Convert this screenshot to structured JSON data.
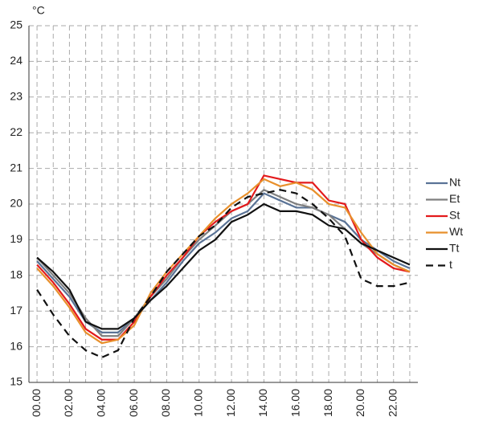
{
  "chart_data": {
    "type": "line",
    "y_label": "°C",
    "categories": [
      "00.00",
      null,
      "02.00",
      null,
      "04.00",
      null,
      "06.00",
      null,
      "08.00",
      null,
      "10.00",
      null,
      "12.00",
      null,
      "14.00",
      null,
      "16.00",
      null,
      "18.00",
      null,
      "20.00",
      null,
      "22.00",
      null
    ],
    "series": [
      {
        "name": "Nt",
        "color": "#5a7396",
        "style": "solid",
        "values": [
          18.4,
          17.9,
          17.4,
          16.7,
          16.4,
          16.4,
          16.8,
          17.3,
          17.8,
          18.4,
          18.9,
          19.2,
          19.6,
          19.8,
          20.3,
          20.1,
          19.9,
          19.9,
          19.7,
          19.5,
          19.0,
          18.7,
          18.4,
          18.2
        ]
      },
      {
        "name": "Et",
        "color": "#7f7f7f",
        "style": "solid",
        "values": [
          18.5,
          18.0,
          17.5,
          16.8,
          16.3,
          16.3,
          16.8,
          17.4,
          17.9,
          18.5,
          19.0,
          19.4,
          19.8,
          20.0,
          20.4,
          20.2,
          20.0,
          19.9,
          19.7,
          19.3,
          18.9,
          18.6,
          18.3,
          18.1
        ]
      },
      {
        "name": "St",
        "color": "#e31a1c",
        "style": "solid",
        "values": [
          18.3,
          17.8,
          17.2,
          16.5,
          16.2,
          16.2,
          16.7,
          17.4,
          18.0,
          18.5,
          19.1,
          19.5,
          19.8,
          20.0,
          20.8,
          20.7,
          20.6,
          20.6,
          20.1,
          20.0,
          19.0,
          18.5,
          18.2,
          18.1
        ]
      },
      {
        "name": "Wt",
        "color": "#e8902c",
        "style": "solid",
        "values": [
          18.2,
          17.7,
          17.1,
          16.4,
          16.1,
          16.2,
          16.6,
          17.5,
          18.1,
          18.6,
          19.1,
          19.6,
          20.0,
          20.3,
          20.7,
          20.5,
          20.6,
          20.4,
          20.0,
          19.9,
          19.2,
          18.6,
          18.3,
          18.1
        ]
      },
      {
        "name": "Tt",
        "color": "#111111",
        "style": "solid",
        "values": [
          18.5,
          18.1,
          17.6,
          16.7,
          16.5,
          16.5,
          16.8,
          17.3,
          17.7,
          18.2,
          18.7,
          19.0,
          19.5,
          19.7,
          20.0,
          19.8,
          19.8,
          19.7,
          19.4,
          19.3,
          18.9,
          18.7,
          18.5,
          18.3
        ]
      },
      {
        "name": "t",
        "color": "#111111",
        "style": "dashed",
        "values": [
          17.6,
          16.9,
          16.3,
          15.9,
          15.7,
          15.9,
          16.8,
          17.4,
          18.1,
          18.6,
          19.1,
          19.4,
          19.9,
          20.2,
          20.3,
          20.4,
          20.3,
          20.0,
          19.6,
          19.1,
          17.9,
          17.7,
          17.7,
          17.8
        ]
      }
    ],
    "ylim": [
      15,
      25
    ],
    "yticks": [
      15,
      16,
      17,
      18,
      19,
      20,
      21,
      22,
      23,
      24,
      25
    ],
    "grid": true
  }
}
